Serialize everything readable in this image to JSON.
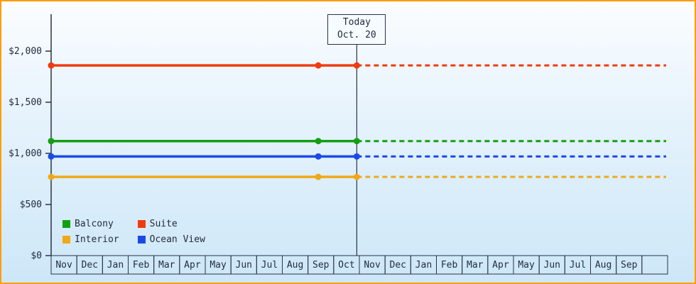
{
  "chart_data": {
    "type": "line",
    "title": "",
    "y_axis": {
      "min": 0,
      "max": 2000,
      "ticks": [
        {
          "value": 0,
          "label": "$0"
        },
        {
          "value": 500,
          "label": "$500"
        },
        {
          "value": 1000,
          "label": "$1,000"
        },
        {
          "value": 1500,
          "label": "$1,500"
        },
        {
          "value": 2000,
          "label": "$2,000"
        }
      ]
    },
    "x_axis": {
      "months": [
        "Nov",
        "Dec",
        "Jan",
        "Feb",
        "Mar",
        "Apr",
        "May",
        "Jun",
        "Jul",
        "Aug",
        "Sep",
        "Oct",
        "Nov",
        "Dec",
        "Jan",
        "Feb",
        "Mar",
        "Apr",
        "May",
        "Jun",
        "Jul",
        "Aug",
        "Sep",
        ""
      ]
    },
    "today": {
      "line1": "Today",
      "line2": "Oct. 20",
      "month_index": 11,
      "month_fraction": 0.9
    },
    "series": [
      {
        "name": "Balcony",
        "color": "#12a012",
        "value": 1120
      },
      {
        "name": "Suite",
        "color": "#f03b10",
        "value": 1860
      },
      {
        "name": "Interior",
        "color": "#f0a818",
        "value": 770
      },
      {
        "name": "Ocean View",
        "color": "#1b49e8",
        "value": 970
      }
    ],
    "marker_positions": [
      {
        "month_index": 0,
        "month_fraction": 0
      },
      {
        "month_index": 10,
        "month_fraction": 0.4
      },
      {
        "month_index": 11,
        "month_fraction": 0.9
      }
    ],
    "past_style": "solid",
    "future_style": "dashed",
    "grid": false,
    "legend_position": "bottom-left"
  },
  "colors": {
    "border": "#ff9d00",
    "axis": "#2b3346",
    "text": "#222c3f",
    "background_top": "#fbfdff",
    "background_bottom": "#cde7f8"
  }
}
